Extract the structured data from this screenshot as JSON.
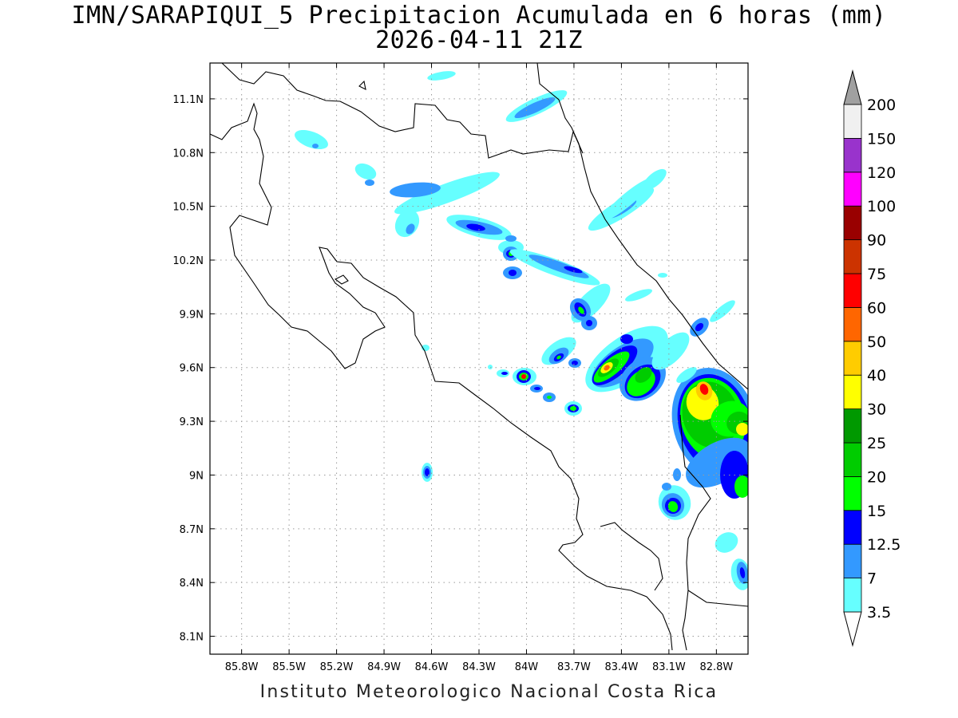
{
  "title": {
    "line1": "IMN/SARAPIQUI_5 Precipitacion Acumulada en 6 horas (mm)",
    "line2": "2026-04-11 21Z"
  },
  "footer": "Instituto Meteorologico Nacional Costa Rica",
  "map": {
    "lon_range": [
      -86.0,
      -82.6
    ],
    "lat_range": [
      8.0,
      11.3
    ],
    "lon_ticks": [
      "85.8W",
      "85.5W",
      "85.2W",
      "84.9W",
      "84.6W",
      "84.3W",
      "84W",
      "83.7W",
      "83.4W",
      "83.1W",
      "82.8W"
    ],
    "lat_ticks": [
      "8.1N",
      "8.4N",
      "8.7N",
      "9N",
      "9.3N",
      "9.6N",
      "9.9N",
      "10.2N",
      "10.5N",
      "10.8N",
      "11.1N"
    ],
    "grid": "dotted",
    "coastline_color": "#000000"
  },
  "colorbar": {
    "levels": [
      "3.5",
      "7",
      "12.5",
      "15",
      "20",
      "25",
      "30",
      "40",
      "50",
      "60",
      "75",
      "90",
      "100",
      "120",
      "150",
      "200"
    ],
    "colors": [
      "#ffffff",
      "#66ffff",
      "#3399ff",
      "#0000ff",
      "#00ff00",
      "#00cc00",
      "#009900",
      "#ffff00",
      "#ffcc00",
      "#ff6600",
      "#ff0000",
      "#cc3300",
      "#990000",
      "#ff00ff",
      "#9933cc",
      "#f0f0f0",
      "#a0a0a0"
    ]
  },
  "precip_cells": [
    {
      "lon": -84.58,
      "lat": 10.45,
      "level": 1
    },
    {
      "lon": -84.28,
      "lat": 10.62,
      "level": 1
    },
    {
      "lon": -83.77,
      "lat": 11.08,
      "level": 2
    },
    {
      "lon": -84.04,
      "lat": 10.38,
      "level": 3
    },
    {
      "lon": -84.0,
      "lat": 10.24,
      "level": 4
    },
    {
      "lon": -83.97,
      "lat": 9.55,
      "level": 10
    },
    {
      "lon": -83.4,
      "lat": 9.6,
      "level": 10
    },
    {
      "lon": -82.77,
      "lat": 9.5,
      "level": 10
    },
    {
      "lon": -82.62,
      "lat": 9.25,
      "level": 8
    },
    {
      "lon": -82.97,
      "lat": 8.85,
      "level": 5
    },
    {
      "lon": -84.6,
      "lat": 9.02,
      "level": 3
    }
  ]
}
